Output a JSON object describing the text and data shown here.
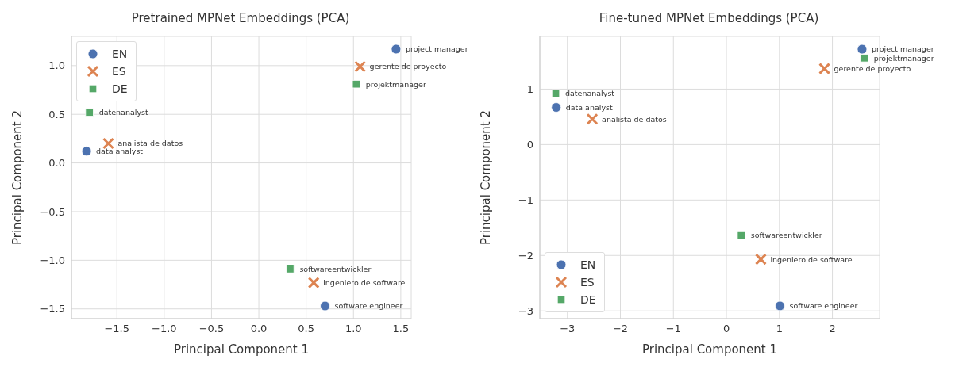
{
  "chart_data": [
    {
      "type": "scatter",
      "title": "Pretrained MPNet Embeddings (PCA)",
      "xlabel": "Principal Component 1",
      "ylabel": "Principal Component 2",
      "series": [
        {
          "name": "EN",
          "color": "#4c72b0",
          "marker": "circle",
          "x": [
            -1.82,
            1.45,
            0.7
          ],
          "values": [
            0.12,
            1.17,
            -1.47
          ]
        },
        {
          "name": "ES",
          "color": "#dd8452",
          "marker": "cross",
          "x": [
            -1.59,
            1.07,
            0.58
          ],
          "values": [
            0.2,
            0.99,
            -1.23
          ]
        },
        {
          "name": "DE",
          "color": "#55a868",
          "marker": "square",
          "x": [
            -1.79,
            1.03,
            0.33
          ],
          "values": [
            0.52,
            0.81,
            -1.09
          ]
        }
      ],
      "xlim": [
        -1.98,
        1.61
      ],
      "ylim": [
        -1.6,
        1.3
      ],
      "xticks": [
        {
          "value": -1.5,
          "label": "−1.5"
        },
        {
          "value": -1,
          "label": "−1.0"
        },
        {
          "value": -0.5,
          "label": "−0.5"
        },
        {
          "value": 0,
          "label": "0.0"
        },
        {
          "value": 0.5,
          "label": "0.5"
        },
        {
          "value": 1,
          "label": "1.0"
        },
        {
          "value": 1.5,
          "label": "1.5"
        }
      ],
      "yticks": [
        {
          "value": -1.5,
          "label": "−1.5"
        },
        {
          "value": -1,
          "label": "−1.0"
        },
        {
          "value": -0.5,
          "label": "−0.5"
        },
        {
          "value": 0,
          "label": "0.0"
        },
        {
          "value": 0.5,
          "label": "0.5"
        },
        {
          "value": 1,
          "label": "1.0"
        }
      ],
      "grid": true,
      "legend": "top left",
      "annotations": [
        {
          "text": "data analyst",
          "x": -1.82,
          "y": 0.12
        },
        {
          "text": "project manager",
          "x": 1.45,
          "y": 1.17
        },
        {
          "text": "software engineer",
          "x": 0.7,
          "y": -1.47
        },
        {
          "text": "analista de datos",
          "x": -1.59,
          "y": 0.2
        },
        {
          "text": "gerente de proyecto",
          "x": 1.07,
          "y": 0.99
        },
        {
          "text": "ingeniero de software",
          "x": 0.58,
          "y": -1.23
        },
        {
          "text": "datenanalyst",
          "x": -1.79,
          "y": 0.52
        },
        {
          "text": "projektmanager",
          "x": 1.03,
          "y": 0.81
        },
        {
          "text": "softwareentwickler",
          "x": 0.33,
          "y": -1.09
        }
      ]
    },
    {
      "type": "scatter",
      "title": "Fine-tuned MPNet Embeddings (PCA)",
      "xlabel": "Principal Component 1",
      "ylabel": "Principal Component 2",
      "series": [
        {
          "name": "EN",
          "color": "#4c72b0",
          "marker": "circle",
          "x": [
            -3.21,
            2.56,
            1.01
          ],
          "values": [
            0.67,
            1.72,
            -2.91
          ]
        },
        {
          "name": "ES",
          "color": "#dd8452",
          "marker": "cross",
          "x": [
            -2.53,
            1.85,
            0.65
          ],
          "values": [
            0.46,
            1.37,
            -2.07
          ]
        },
        {
          "name": "DE",
          "color": "#55a868",
          "marker": "square",
          "x": [
            -3.22,
            2.6,
            0.28
          ],
          "values": [
            0.92,
            1.56,
            -1.64
          ]
        }
      ],
      "xlim": [
        -3.52,
        2.89
      ],
      "ylim": [
        -3.14,
        1.95
      ],
      "xticks": [
        {
          "value": -3,
          "label": "−3"
        },
        {
          "value": -2,
          "label": "−2"
        },
        {
          "value": -1,
          "label": "−1"
        },
        0,
        1,
        2
      ],
      "yticks": [
        {
          "value": -3,
          "label": "−3"
        },
        {
          "value": -2,
          "label": "−2"
        },
        {
          "value": -1,
          "label": "−1"
        },
        0,
        1
      ],
      "grid": true,
      "legend": "bottom left",
      "annotations": [
        {
          "text": "data analyst",
          "x": -3.21,
          "y": 0.67
        },
        {
          "text": "project manager",
          "x": 2.56,
          "y": 1.72
        },
        {
          "text": "software engineer",
          "x": 1.01,
          "y": -2.91
        },
        {
          "text": "analista de datos",
          "x": -2.53,
          "y": 0.46
        },
        {
          "text": "gerente de proyecto",
          "x": 1.85,
          "y": 1.37
        },
        {
          "text": "ingeniero de software",
          "x": 0.65,
          "y": -2.07
        },
        {
          "text": "datenanalyst",
          "x": -3.22,
          "y": 0.92
        },
        {
          "text": "projektmanager",
          "x": 2.6,
          "y": 1.56
        },
        {
          "text": "softwareentwickler",
          "x": 0.28,
          "y": -1.64
        }
      ]
    }
  ]
}
